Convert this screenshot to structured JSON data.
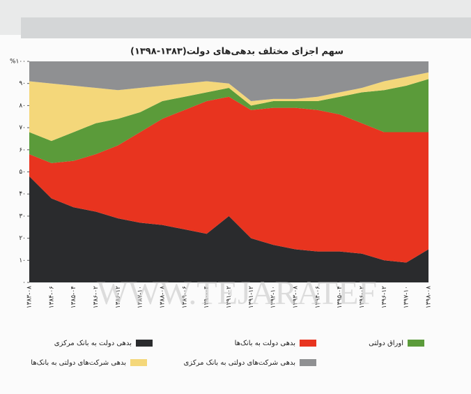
{
  "chart_data": {
    "type": "stacked-area",
    "title": "سهم اجزای مختلف بدهی‌های دولت(۱۳۸۳-۱۳۹۸)",
    "watermark": "WWW.TEJARATEF",
    "categories": [
      "۱۳۸۳-۰۸",
      "۱۳۸۴-۰۶",
      "۱۳۸۵-۰۴",
      "۱۳۸۶-۰۲",
      "۱۳۸۶-۱۲",
      "۱۳۸۷-۱۰",
      "۱۳۸۸-۰۸",
      "۱۳۸۹-۰۶",
      "۱۳۹۰-۰۴",
      "۱۳۹۱-۰۲",
      "۱۳۹۱-۱۲",
      "۱۳۹۲-۱۰",
      "۱۳۹۳-۰۸",
      "۱۳۹۴-۰۶",
      "۱۳۹۵-۰۴",
      "۱۳۹۶-۰۲",
      "۱۳۹۶-۱۲",
      "۱۳۹۷-۱۰",
      "۱۳۹۸-۰۸"
    ],
    "series": [
      {
        "name": "بدهی دولت به بانک مرکزی",
        "color": "#2a2b2d",
        "values": [
          48,
          38,
          34,
          32,
          29,
          27,
          26,
          24,
          22,
          30,
          20,
          17,
          15,
          14,
          14,
          13,
          10,
          9,
          15
        ]
      },
      {
        "name": "بدهی دولت به بانک‌ها",
        "color": "#e8341f",
        "values": [
          10,
          16,
          21,
          26,
          33,
          41,
          48,
          54,
          60,
          54,
          58,
          62,
          64,
          64,
          62,
          59,
          58,
          59,
          53
        ]
      },
      {
        "name": "اوراق دولتی",
        "color": "#5b9b3a",
        "values": [
          10,
          10,
          13,
          14,
          12,
          9,
          8,
          6,
          4,
          4,
          2,
          3,
          3,
          4,
          8,
          14,
          19,
          21,
          24
        ]
      },
      {
        "name": "بدهی شرکت‌های دولتی به بانک‌ها",
        "color": "#f4d77a",
        "values": [
          23,
          26,
          21,
          16,
          13,
          11,
          7,
          6,
          5,
          2,
          2,
          1,
          1,
          2,
          2,
          2,
          4,
          4,
          3
        ]
      },
      {
        "name": "بدهی شرکت‌های دولتی به بانک مرکزی",
        "color": "#8f9092",
        "values": [
          9,
          10,
          11,
          12,
          13,
          12,
          11,
          10,
          9,
          10,
          18,
          17,
          17,
          16,
          14,
          12,
          9,
          7,
          5
        ]
      }
    ],
    "ylim": [
      0,
      100
    ],
    "yticks": [
      {
        "value": 0,
        "label": "۰"
      },
      {
        "value": 10,
        "label": "۱۰"
      },
      {
        "value": 20,
        "label": "۲۰"
      },
      {
        "value": 30,
        "label": "۳۰"
      },
      {
        "value": 40,
        "label": "۴۰"
      },
      {
        "value": 50,
        "label": "۵۰"
      },
      {
        "value": 60,
        "label": "۶۰"
      },
      {
        "value": 70,
        "label": "۷۰"
      },
      {
        "value": 80,
        "label": "۸۰"
      },
      {
        "value": 90,
        "label": "۹۰"
      },
      {
        "value": 100,
        "label": "%۱۰۰"
      }
    ]
  }
}
